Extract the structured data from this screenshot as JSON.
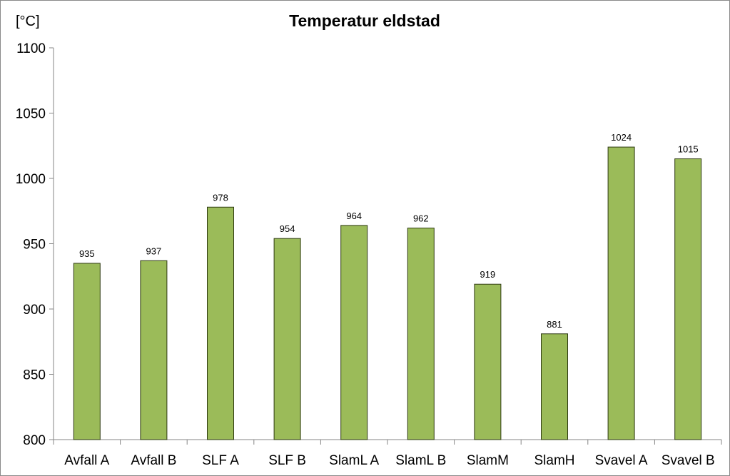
{
  "chart_data": {
    "type": "bar",
    "title": "Temperatur eldstad",
    "ylabel": "[°C]",
    "xlabel": "",
    "ylim": [
      800,
      1100
    ],
    "ytick_step": 50,
    "yticks": [
      "800",
      "850",
      "900",
      "950",
      "1000",
      "1050",
      "1100"
    ],
    "categories": [
      "Avfall A",
      "Avfall B",
      "SLF A",
      "SLF B",
      "SlamL A",
      "SlamL B",
      "SlamM",
      "SlamH",
      "Svavel A",
      "Svavel B"
    ],
    "values": [
      935,
      937,
      978,
      954,
      964,
      962,
      919,
      881,
      1024,
      1015
    ],
    "data_labels": [
      "935",
      "937",
      "978",
      "954",
      "964",
      "962",
      "919",
      "881",
      "1024",
      "1015"
    ],
    "bar_color": "#9bbb59",
    "bar_border_color": "#2e3a12",
    "grid": false,
    "legend": "none"
  }
}
